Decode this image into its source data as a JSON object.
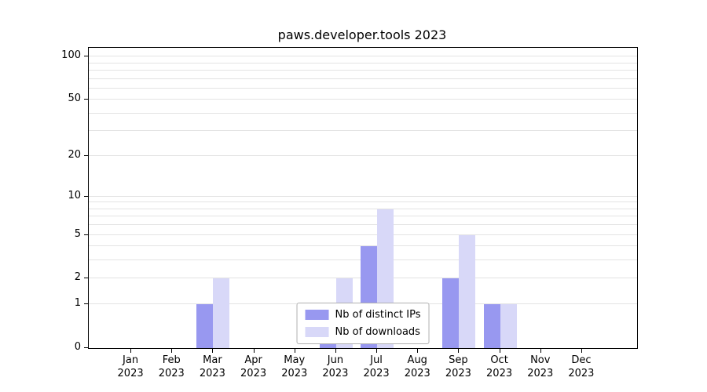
{
  "chart_data": {
    "type": "bar",
    "title": "paws.developer.tools 2023",
    "categories": [
      "Jan",
      "Feb",
      "Mar",
      "Apr",
      "May",
      "Jun",
      "Jul",
      "Aug",
      "Sep",
      "Oct",
      "Nov",
      "Dec"
    ],
    "x_year_label": "2023",
    "series": [
      {
        "name": "Nb of distinct IPs",
        "color": "#9898f0",
        "values": [
          0,
          0,
          1,
          0,
          0,
          1,
          4,
          0,
          2,
          1,
          0,
          0
        ]
      },
      {
        "name": "Nb of downloads",
        "color": "#d8d8f8",
        "values": [
          0,
          0,
          2,
          0,
          0,
          2,
          8,
          0,
          5,
          1,
          0,
          0
        ]
      }
    ],
    "xlabel": "",
    "ylabel": "",
    "y_scale": "log1p",
    "y_ticks": [
      0,
      1,
      2,
      5,
      10,
      20,
      50,
      100
    ],
    "y_minor_ticks": [
      3,
      4,
      6,
      7,
      8,
      9,
      30,
      40,
      60,
      70,
      80,
      90
    ],
    "ylim": [
      0,
      115
    ],
    "grid": true,
    "legend_position": "lower center"
  }
}
